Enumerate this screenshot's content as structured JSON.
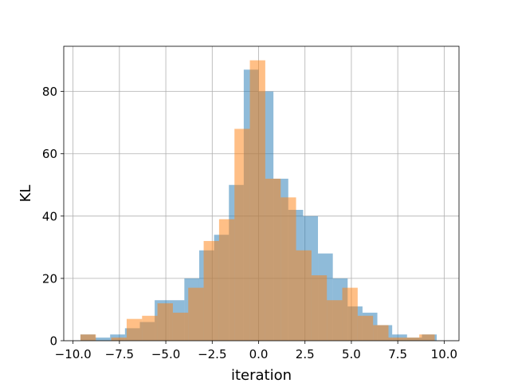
{
  "chart_data": {
    "type": "histogram",
    "xlabel": "iteration",
    "ylabel": "KL",
    "xlim": [
      -10.5,
      10.8
    ],
    "ylim": [
      0,
      94.5
    ],
    "xticks": [
      -10.0,
      -7.5,
      -5.0,
      -2.5,
      0.0,
      2.5,
      5.0,
      7.5,
      10.0
    ],
    "xtick_labels": [
      "−10.0",
      "−7.5",
      "−5.0",
      "−2.5",
      "0.0",
      "2.5",
      "5.0",
      "7.5",
      "10.0"
    ],
    "yticks": [
      0,
      20,
      40,
      60,
      80
    ],
    "ytick_labels": [
      "0",
      "20",
      "40",
      "60",
      "80"
    ],
    "grid": true,
    "legend": "none",
    "series": [
      {
        "color": "#1f77b4",
        "opacity": 0.5,
        "bin_edges": [
          -9.6,
          -8.8,
          -8.0,
          -7.2,
          -6.4,
          -5.6,
          -4.8,
          -4.0,
          -3.2,
          -2.4,
          -1.6,
          -0.8,
          0.0,
          0.8,
          1.6,
          2.4,
          3.2,
          4.0,
          4.8,
          5.6,
          6.4,
          7.2,
          8.0,
          8.8,
          9.6
        ],
        "counts": [
          2,
          1,
          2,
          4,
          6,
          13,
          13,
          20,
          29,
          34,
          50,
          87,
          80,
          52,
          42,
          40,
          28,
          20,
          11,
          9,
          5,
          2,
          1,
          2
        ]
      },
      {
        "color": "#ff7f0e",
        "opacity": 0.5,
        "bin_edges": [
          -9.6,
          -8.77,
          -7.94,
          -7.11,
          -6.28,
          -5.45,
          -4.62,
          -3.79,
          -2.96,
          -2.13,
          -1.3,
          -0.47,
          0.36,
          1.19,
          2.02,
          2.85,
          3.68,
          4.51,
          5.34,
          6.17,
          7.0,
          7.83,
          8.66,
          9.49
        ],
        "counts": [
          2,
          0,
          1,
          7,
          8,
          12,
          9,
          17,
          32,
          39,
          68,
          90,
          52,
          46,
          29,
          21,
          13,
          17,
          8,
          5,
          1,
          1,
          2
        ]
      }
    ]
  }
}
